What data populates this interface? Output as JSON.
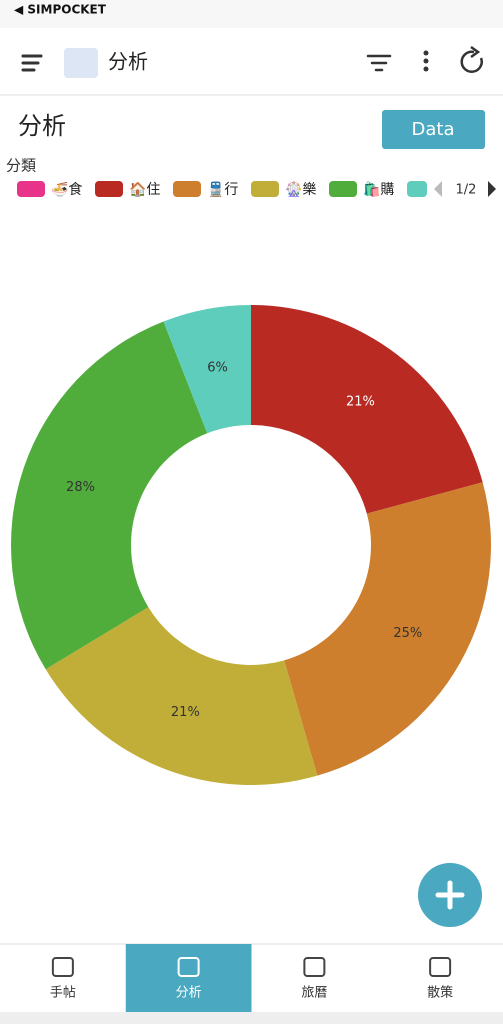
{
  "status_bar": {
    "back_label": "◀ SIMPOCKET"
  },
  "app_bar": {
    "title": "分析"
  },
  "page": {
    "title": "分析",
    "button": "Data"
  },
  "legend_pager": "1/2",
  "chart_data": {
    "type": "pie",
    "legend_title": "分類",
    "categories": [
      "🍜食",
      "🏠住",
      "🚆行",
      "🎡樂",
      "🛍️購",
      null
    ],
    "colors": [
      "#e8338a",
      "#b82a22",
      "#cd7f2e",
      "#c0ae38",
      "#50ad3c",
      "#5ecdbc"
    ],
    "values": [
      0,
      21,
      25,
      21,
      28,
      6
    ],
    "value_labels": [
      null,
      "21%",
      "25%",
      "21%",
      "28%",
      "6%"
    ]
  },
  "bottom_nav": {
    "tabs": [
      "手帖",
      "分析",
      "旅曆",
      "散策"
    ],
    "selected": 1
  }
}
